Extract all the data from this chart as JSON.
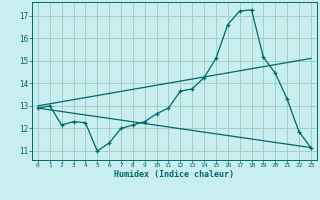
{
  "xlabel": "Humidex (Indice chaleur)",
  "bg_color": "#c8eef0",
  "grid_color": "#a0d0c8",
  "line_color": "#006868",
  "xlim": [
    -0.5,
    23.5
  ],
  "ylim": [
    10.6,
    17.6
  ],
  "xticks": [
    0,
    1,
    2,
    3,
    4,
    5,
    6,
    7,
    8,
    9,
    10,
    11,
    12,
    13,
    14,
    15,
    16,
    17,
    18,
    19,
    20,
    21,
    22,
    23
  ],
  "yticks": [
    11,
    12,
    13,
    14,
    15,
    16,
    17
  ],
  "line1_x": [
    0,
    1,
    2,
    3,
    4,
    5,
    6,
    7,
    8,
    9,
    10,
    11,
    12,
    13,
    14,
    15,
    16,
    17,
    18,
    19,
    20,
    21,
    22,
    23
  ],
  "line1_y": [
    12.9,
    13.0,
    12.15,
    12.3,
    12.25,
    11.0,
    11.35,
    12.0,
    12.15,
    12.3,
    12.65,
    12.9,
    13.65,
    13.75,
    14.25,
    15.1,
    16.6,
    17.2,
    17.25,
    15.15,
    14.45,
    13.3,
    11.85,
    11.15
  ],
  "line2_x": [
    0,
    23
  ],
  "line2_y": [
    13.0,
    15.1
  ],
  "line3_x": [
    0,
    23
  ],
  "line3_y": [
    12.9,
    11.15
  ]
}
